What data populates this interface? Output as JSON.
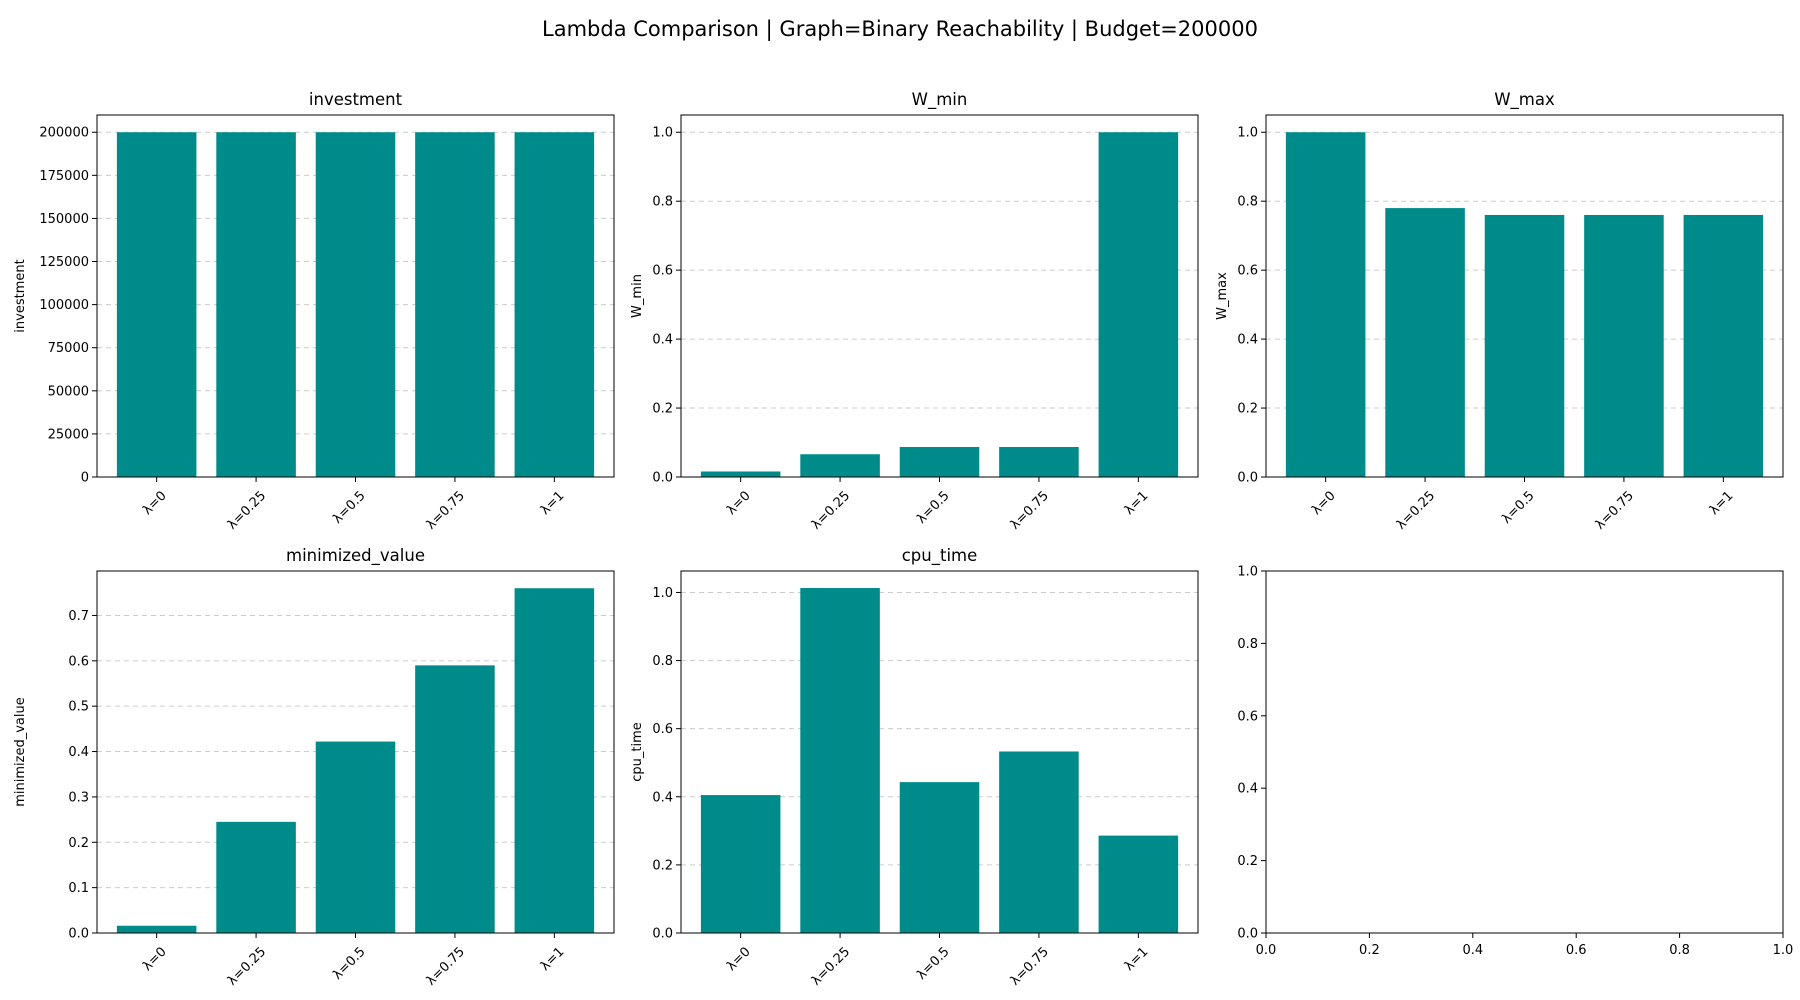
{
  "figure": {
    "title": "Lambda Comparison | Graph=Binary Reachability | Budget=200000",
    "bar_color": "#008b8b",
    "grid_color": "#cccccc"
  },
  "chart_data": [
    {
      "type": "bar",
      "title": "investment",
      "ylabel": "investment",
      "categories": [
        "λ=0",
        "λ=0.25",
        "λ=0.5",
        "λ=0.75",
        "λ=1"
      ],
      "values": [
        200000,
        200000,
        200000,
        200000,
        200000
      ],
      "ylim": [
        0,
        210000
      ],
      "yticks": [
        0,
        25000,
        50000,
        75000,
        100000,
        125000,
        150000,
        175000,
        200000
      ],
      "grid": "y-dashed"
    },
    {
      "type": "bar",
      "title": "W_min",
      "ylabel": "W_min",
      "categories": [
        "λ=0",
        "λ=0.25",
        "λ=0.5",
        "λ=0.75",
        "λ=1"
      ],
      "values": [
        0.016,
        0.066,
        0.087,
        0.087,
        1.0
      ],
      "ylim": [
        0,
        1.05
      ],
      "yticks": [
        "0.0",
        "0.2",
        "0.4",
        "0.6",
        "0.8",
        "1.0"
      ],
      "grid": "y-dashed"
    },
    {
      "type": "bar",
      "title": "W_max",
      "ylabel": "W_max",
      "categories": [
        "λ=0",
        "λ=0.25",
        "λ=0.5",
        "λ=0.75",
        "λ=1"
      ],
      "values": [
        1.0,
        0.78,
        0.76,
        0.76,
        0.76
      ],
      "ylim": [
        0,
        1.05
      ],
      "yticks": [
        "0.0",
        "0.2",
        "0.4",
        "0.6",
        "0.8",
        "1.0"
      ],
      "grid": "y-dashed"
    },
    {
      "type": "bar",
      "title": "minimized_value",
      "ylabel": "minimized_value",
      "categories": [
        "λ=0",
        "λ=0.25",
        "λ=0.5",
        "λ=0.75",
        "λ=1"
      ],
      "values": [
        0.016,
        0.245,
        0.422,
        0.59,
        0.76
      ],
      "ylim": [
        0,
        0.798
      ],
      "yticks": [
        "0.0",
        "0.1",
        "0.2",
        "0.3",
        "0.4",
        "0.5",
        "0.6",
        "0.7"
      ],
      "grid": "y-dashed"
    },
    {
      "type": "bar",
      "title": "cpu_time",
      "ylabel": "cpu_time",
      "categories": [
        "λ=0",
        "λ=0.25",
        "λ=0.5",
        "λ=0.75",
        "λ=1"
      ],
      "values": [
        0.405,
        1.013,
        0.443,
        0.533,
        0.286
      ],
      "ylim": [
        0,
        1.063
      ],
      "yticks": [
        "0.0",
        "0.2",
        "0.4",
        "0.6",
        "0.8",
        "1.0"
      ],
      "grid": "y-dashed"
    },
    {
      "type": "bar",
      "title": "",
      "ylabel": "",
      "categories": [],
      "values": [],
      "empty": true,
      "xlim": [
        0,
        1
      ],
      "ylim": [
        0,
        1
      ],
      "xticks": [
        "0.0",
        "0.2",
        "0.4",
        "0.6",
        "0.8",
        "1.0"
      ],
      "yticks": [
        "0.0",
        "0.2",
        "0.4",
        "0.6",
        "0.8",
        "1.0"
      ],
      "grid": "none"
    }
  ]
}
